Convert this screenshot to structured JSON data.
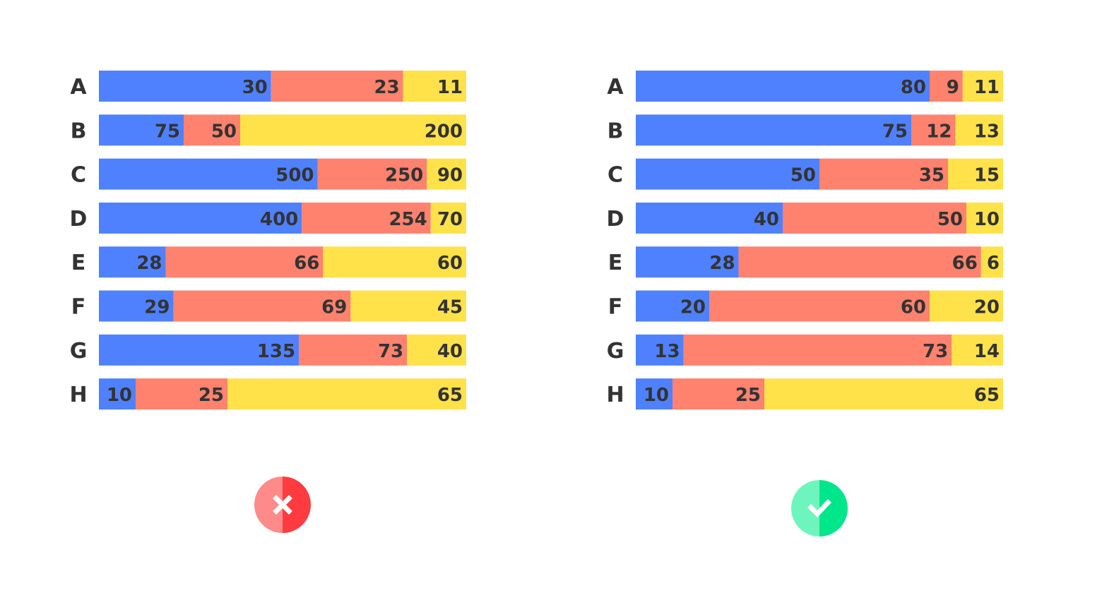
{
  "chart_data": [
    {
      "type": "bar",
      "orientation": "horizontal",
      "stacking": "normalized-100%",
      "verdict": "incorrect",
      "verdict_icon": "cross-circle-icon",
      "categories": [
        "A",
        "B",
        "C",
        "D",
        "E",
        "F",
        "G",
        "H"
      ],
      "series": [
        {
          "name": "series-1",
          "color": "#4F81FF",
          "values": [
            30,
            75,
            500,
            400,
            28,
            29,
            135,
            10
          ]
        },
        {
          "name": "series-2",
          "color": "#FF826E",
          "values": [
            23,
            50,
            250,
            254,
            66,
            69,
            73,
            25
          ]
        },
        {
          "name": "series-3",
          "color": "#FFE24A",
          "values": [
            11,
            200,
            90,
            70,
            60,
            45,
            40,
            65
          ]
        }
      ],
      "title": "",
      "xlabel": "",
      "ylabel": "",
      "grid": false,
      "legend": "none"
    },
    {
      "type": "bar",
      "orientation": "horizontal",
      "stacking": "normalized-100%",
      "verdict": "correct",
      "verdict_icon": "check-circle-icon",
      "categories": [
        "A",
        "B",
        "C",
        "D",
        "E",
        "F",
        "G",
        "H"
      ],
      "series": [
        {
          "name": "series-1",
          "color": "#4F81FF",
          "values": [
            80,
            75,
            50,
            40,
            28,
            20,
            13,
            10
          ]
        },
        {
          "name": "series-2",
          "color": "#FF826E",
          "values": [
            9,
            12,
            35,
            50,
            66,
            60,
            73,
            25
          ]
        },
        {
          "name": "series-3",
          "color": "#FFE24A",
          "values": [
            11,
            13,
            15,
            10,
            6,
            20,
            14,
            65
          ]
        }
      ],
      "title": "",
      "xlabel": "",
      "ylabel": "",
      "grid": false,
      "legend": "none"
    }
  ],
  "icons": {
    "incorrect": {
      "name": "cross-circle-icon",
      "light": "#FF8A8A",
      "dark": "#FF3B3F"
    },
    "correct": {
      "name": "check-circle-icon",
      "light": "#6EF5BE",
      "dark": "#00E68A"
    }
  }
}
